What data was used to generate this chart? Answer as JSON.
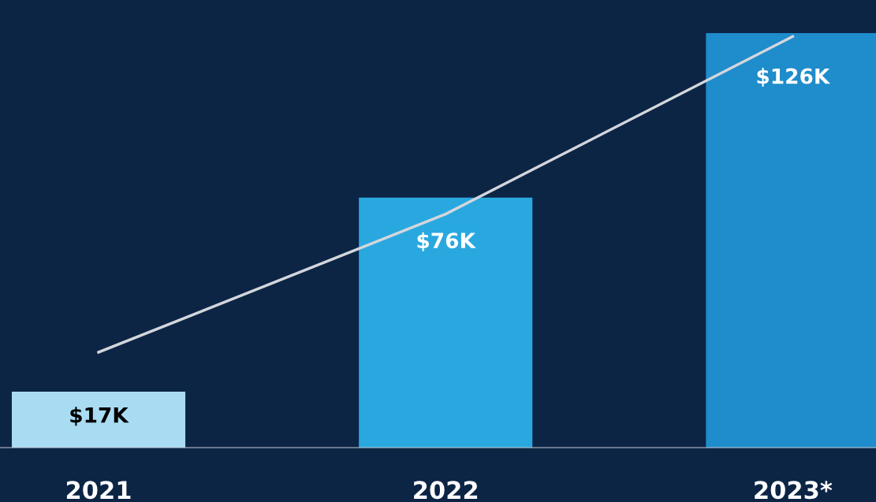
{
  "chart_data": {
    "type": "bar",
    "categories": [
      "2021",
      "2022",
      "2023*"
    ],
    "series": [
      {
        "colors": [
          "#a9dcf3",
          "#29a8e0",
          "#1f8ccb"
        ],
        "values": [
          17,
          76,
          126
        ],
        "value_labels": [
          "$17K",
          "$76K",
          "$126K"
        ]
      },
      {
        "type": "line",
        "color": "#d3d6dc",
        "values": [
          29,
          71,
          125
        ]
      }
    ],
    "grid": false,
    "legend": false,
    "marker": "none",
    "line_style": "solid"
  }
}
